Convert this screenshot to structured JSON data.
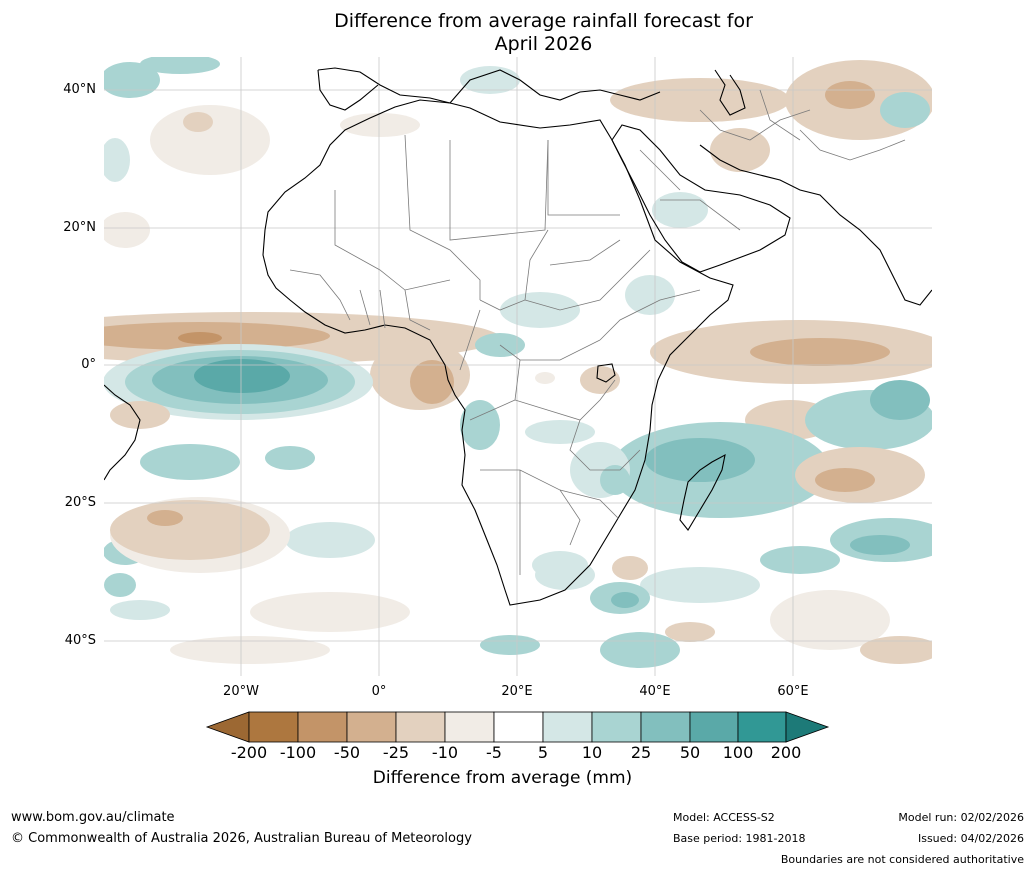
{
  "title": {
    "line1": "Difference from average rainfall forecast for",
    "line2": "April 2026"
  },
  "map": {
    "latitude_labels": [
      "40°N",
      "20°N",
      "0°",
      "20°S",
      "40°S"
    ],
    "longitude_labels": [
      "20°W",
      "0°",
      "20°E",
      "40°E",
      "60°E"
    ]
  },
  "legend": {
    "title": "Difference from average (mm)",
    "tick_labels": [
      "-200",
      "-100",
      "-50",
      "-25",
      "-10",
      "-5",
      "5",
      "10",
      "25",
      "50",
      "100",
      "200"
    ],
    "bins": [
      {
        "range": "< -200",
        "color": "#9c6833"
      },
      {
        "range": "-200 to -100",
        "color": "#ad773f"
      },
      {
        "range": "-100 to -50",
        "color": "#c39468"
      },
      {
        "range": "-50 to -25",
        "color": "#d3b08f"
      },
      {
        "range": "-25 to -10",
        "color": "#e3d1bf"
      },
      {
        "range": "-10 to -5",
        "color": "#f1ece6"
      },
      {
        "range": "-5 to 5",
        "color": "#ffffff"
      },
      {
        "range": "5 to 10",
        "color": "#d4e7e6"
      },
      {
        "range": "10 to 25",
        "color": "#a9d4d2"
      },
      {
        "range": "25 to 50",
        "color": "#82bfbe"
      },
      {
        "range": "50 to 100",
        "color": "#5aa9a8"
      },
      {
        "range": "100 to 200",
        "color": "#319895"
      },
      {
        "range": "> 200",
        "color": "#1d7a78"
      }
    ]
  },
  "footer": {
    "url": "www.bom.gov.au/climate",
    "copyright": "© Commonwealth of Australia 2026, Australian Bureau of Meteorology",
    "model": "Model: ACCESS-S2",
    "base_period": "Base period: 1981-2018",
    "model_run": "Model run: 02/02/2026",
    "issued": "Issued: 04/02/2026",
    "disclaimer": "Boundaries are not considered authoritative"
  }
}
